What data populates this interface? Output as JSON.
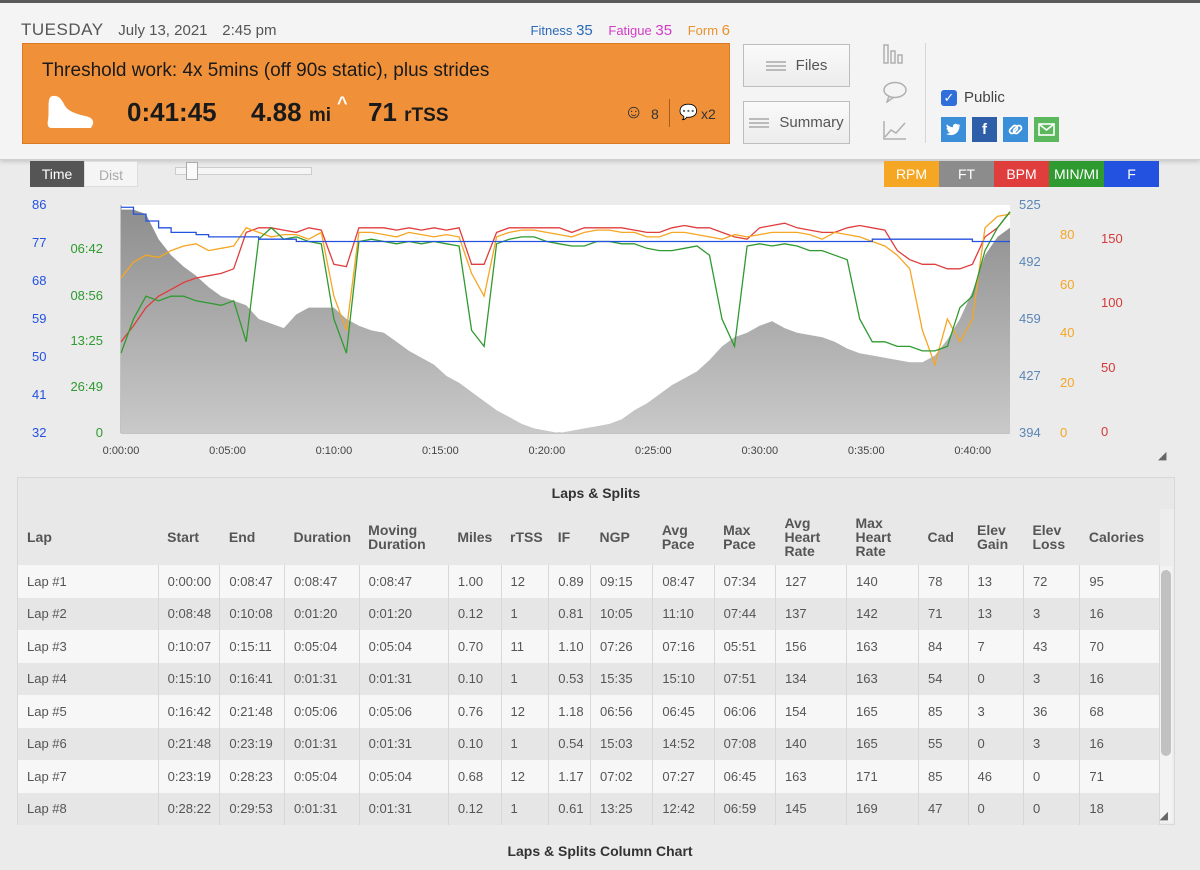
{
  "header": {
    "day": "TUESDAY",
    "date": "July 13, 2021",
    "time": "2:45 pm",
    "fitness_label": "Fitness",
    "fitness_value": "35",
    "fatigue_label": "Fatigue",
    "fatigue_value": "35",
    "form_label": "Form",
    "form_value": "6"
  },
  "workout": {
    "title": "Threshold work: 4x 5mins (off 90s static), plus strides",
    "duration": "0:41:45",
    "distance": "4.88",
    "distance_unit": "mi",
    "tss": "71",
    "tss_unit": "rTSS",
    "feel_count": "8",
    "comment_count": "x2",
    "color": "#f0913a"
  },
  "buttons": {
    "files": "Files",
    "summary": "Summary"
  },
  "sharing": {
    "public_label": "Public",
    "public_checked": true
  },
  "chart_controls": {
    "time_label": "Time",
    "dist_label": "Dist",
    "channels": [
      {
        "label": "RPM",
        "bg": "#f5a623",
        "fg": "#ffffff"
      },
      {
        "label": "FT",
        "bg": "#8c8c8c",
        "fg": "#ffffff"
      },
      {
        "label": "BPM",
        "bg": "#e03d3d",
        "fg": "#ffffff"
      },
      {
        "label": "MIN/MI",
        "bg": "#2f9a2f",
        "fg": "#ffffff"
      },
      {
        "label": "F",
        "bg": "#2452e0",
        "fg": "#ffffff"
      }
    ]
  },
  "chart_data": {
    "type": "line",
    "x_ticks": [
      "0:00:00",
      "0:05:00",
      "0:10:00",
      "0:15:00",
      "0:20:00",
      "0:25:00",
      "0:30:00",
      "0:35:00",
      "0:40:00"
    ],
    "axes": {
      "temp_f": [
        "86",
        "77",
        "68",
        "59",
        "50",
        "41",
        "32"
      ],
      "pace": [
        "06:42",
        "08:56",
        "13:25",
        "26:49",
        "0"
      ],
      "elevation_ft": [
        "525",
        "492",
        "459",
        "427",
        "394"
      ],
      "cadence_rpm": [
        "80",
        "60",
        "40",
        "20",
        "0"
      ],
      "heart_bpm": [
        "150",
        "100",
        "50",
        "0"
      ]
    },
    "series": [
      {
        "name": "FT",
        "color": "#9a9a9a",
        "values": [
          0.98,
          0.98,
          0.96,
          0.85,
          0.78,
          0.73,
          0.69,
          0.64,
          0.6,
          0.58,
          0.56,
          0.5,
          0.48,
          0.46,
          0.52,
          0.55,
          0.55,
          0.55,
          0.5,
          0.47,
          0.45,
          0.44,
          0.4,
          0.36,
          0.33,
          0.3,
          0.25,
          0.22,
          0.18,
          0.14,
          0.1,
          0.07,
          0.04,
          0.02,
          0.01,
          0.0,
          0.01,
          0.02,
          0.03,
          0.04,
          0.06,
          0.1,
          0.13,
          0.17,
          0.21,
          0.24,
          0.27,
          0.32,
          0.38,
          0.42,
          0.44,
          0.47,
          0.49,
          0.46,
          0.44,
          0.43,
          0.42,
          0.4,
          0.37,
          0.35,
          0.34,
          0.33,
          0.32,
          0.31,
          0.31,
          0.34,
          0.41,
          0.5,
          0.62,
          0.78,
          0.86,
          0.9
        ]
      },
      {
        "name": "BPM",
        "color": "#e03d3d",
        "values": [
          0.4,
          0.47,
          0.55,
          0.6,
          0.63,
          0.66,
          0.68,
          0.69,
          0.7,
          0.72,
          0.88,
          0.9,
          0.9,
          0.89,
          0.88,
          0.9,
          0.89,
          0.74,
          0.73,
          0.9,
          0.9,
          0.9,
          0.89,
          0.9,
          0.89,
          0.9,
          0.89,
          0.9,
          0.74,
          0.74,
          0.88,
          0.9,
          0.9,
          0.9,
          0.9,
          0.9,
          0.88,
          0.9,
          0.9,
          0.9,
          0.9,
          0.89,
          0.88,
          0.88,
          0.9,
          0.91,
          0.9,
          0.9,
          0.88,
          0.86,
          0.85,
          0.9,
          0.91,
          0.92,
          0.9,
          0.89,
          0.88,
          0.88,
          0.9,
          0.91,
          0.9,
          0.89,
          0.8,
          0.76,
          0.74,
          0.74,
          0.72,
          0.72,
          0.74,
          0.86,
          0.9,
          0.97
        ]
      },
      {
        "name": "RPM",
        "color": "#f5a623",
        "values": [
          0.68,
          0.75,
          0.78,
          0.77,
          0.8,
          0.82,
          0.83,
          0.8,
          0.81,
          0.82,
          0.9,
          0.88,
          0.86,
          0.87,
          0.87,
          0.85,
          0.88,
          0.6,
          0.45,
          0.88,
          0.88,
          0.87,
          0.86,
          0.88,
          0.87,
          0.86,
          0.87,
          0.86,
          0.7,
          0.6,
          0.86,
          0.88,
          0.89,
          0.89,
          0.88,
          0.87,
          0.86,
          0.88,
          0.89,
          0.89,
          0.88,
          0.88,
          0.86,
          0.86,
          0.88,
          0.88,
          0.87,
          0.86,
          0.85,
          0.87,
          0.86,
          0.87,
          0.88,
          0.88,
          0.88,
          0.87,
          0.85,
          0.88,
          0.87,
          0.86,
          0.84,
          0.82,
          0.78,
          0.72,
          0.45,
          0.3,
          0.5,
          0.4,
          0.5,
          0.9,
          0.95,
          0.96
        ]
      },
      {
        "name": "MIN/MI",
        "color": "#2f9a2f",
        "values": [
          0.35,
          0.5,
          0.6,
          0.58,
          0.6,
          0.6,
          0.58,
          0.57,
          0.56,
          0.58,
          0.4,
          0.85,
          0.9,
          0.85,
          0.86,
          0.84,
          0.83,
          0.5,
          0.35,
          0.84,
          0.85,
          0.84,
          0.83,
          0.84,
          0.83,
          0.84,
          0.83,
          0.82,
          0.45,
          0.38,
          0.83,
          0.85,
          0.86,
          0.86,
          0.84,
          0.83,
          0.82,
          0.82,
          0.84,
          0.84,
          0.83,
          0.83,
          0.81,
          0.8,
          0.8,
          0.81,
          0.82,
          0.78,
          0.5,
          0.38,
          0.82,
          0.83,
          0.82,
          0.83,
          0.82,
          0.8,
          0.8,
          0.78,
          0.76,
          0.5,
          0.4,
          0.4,
          0.38,
          0.38,
          0.36,
          0.36,
          0.38,
          0.55,
          0.6,
          0.8,
          0.9,
          0.97
        ]
      },
      {
        "name": "F",
        "color": "#2452e0",
        "values": [
          0.99,
          0.96,
          0.93,
          0.9,
          0.88,
          0.88,
          0.87,
          0.86,
          0.86,
          0.86,
          0.86,
          0.85,
          0.85,
          0.85,
          0.84,
          0.84,
          0.84,
          0.84,
          0.84,
          0.84,
          0.84,
          0.84,
          0.84,
          0.84,
          0.84,
          0.84,
          0.84,
          0.84,
          0.84,
          0.84,
          0.84,
          0.84,
          0.84,
          0.84,
          0.84,
          0.84,
          0.84,
          0.84,
          0.84,
          0.84,
          0.84,
          0.84,
          0.84,
          0.84,
          0.84,
          0.84,
          0.84,
          0.84,
          0.84,
          0.84,
          0.84,
          0.84,
          0.84,
          0.84,
          0.84,
          0.84,
          0.84,
          0.84,
          0.84,
          0.84,
          0.85,
          0.85,
          0.85,
          0.85,
          0.85,
          0.85,
          0.85,
          0.85,
          0.84,
          0.84,
          0.84,
          0.84
        ]
      }
    ]
  },
  "laps": {
    "title": "Laps & Splits",
    "columns": [
      "Lap",
      "Start",
      "End",
      "Duration",
      "Moving Duration",
      "Miles",
      "rTSS",
      "IF",
      "NGP",
      "Avg Pace",
      "Max Pace",
      "Avg Heart Rate",
      "Max Heart Rate",
      "Cad",
      "Elev Gain",
      "Elev Loss",
      "Calories"
    ],
    "rows": [
      [
        "Lap #1",
        "0:00:00",
        "0:08:47",
        "0:08:47",
        "0:08:47",
        "1.00",
        "12",
        "0.89",
        "09:15",
        "08:47",
        "07:34",
        "127",
        "140",
        "78",
        "13",
        "72",
        "95"
      ],
      [
        "Lap #2",
        "0:08:48",
        "0:10:08",
        "0:01:20",
        "0:01:20",
        "0.12",
        "1",
        "0.81",
        "10:05",
        "11:10",
        "07:44",
        "137",
        "142",
        "71",
        "13",
        "3",
        "16"
      ],
      [
        "Lap #3",
        "0:10:07",
        "0:15:11",
        "0:05:04",
        "0:05:04",
        "0.70",
        "11",
        "1.10",
        "07:26",
        "07:16",
        "05:51",
        "156",
        "163",
        "84",
        "7",
        "43",
        "70"
      ],
      [
        "Lap #4",
        "0:15:10",
        "0:16:41",
        "0:01:31",
        "0:01:31",
        "0.10",
        "1",
        "0.53",
        "15:35",
        "15:10",
        "07:51",
        "134",
        "163",
        "54",
        "0",
        "3",
        "16"
      ],
      [
        "Lap #5",
        "0:16:42",
        "0:21:48",
        "0:05:06",
        "0:05:06",
        "0.76",
        "12",
        "1.18",
        "06:56",
        "06:45",
        "06:06",
        "154",
        "165",
        "85",
        "3",
        "36",
        "68"
      ],
      [
        "Lap #6",
        "0:21:48",
        "0:23:19",
        "0:01:31",
        "0:01:31",
        "0.10",
        "1",
        "0.54",
        "15:03",
        "14:52",
        "07:08",
        "140",
        "165",
        "55",
        "0",
        "3",
        "16"
      ],
      [
        "Lap #7",
        "0:23:19",
        "0:28:23",
        "0:05:04",
        "0:05:04",
        "0.68",
        "12",
        "1.17",
        "07:02",
        "07:27",
        "06:45",
        "163",
        "171",
        "85",
        "46",
        "0",
        "71"
      ],
      [
        "Lap #8",
        "0:28:22",
        "0:29:53",
        "0:01:31",
        "0:01:31",
        "0.12",
        "1",
        "0.61",
        "13:25",
        "12:42",
        "06:59",
        "145",
        "169",
        "47",
        "0",
        "0",
        "18"
      ]
    ]
  },
  "footer": {
    "chart_title": "Laps & Splits Column Chart"
  }
}
